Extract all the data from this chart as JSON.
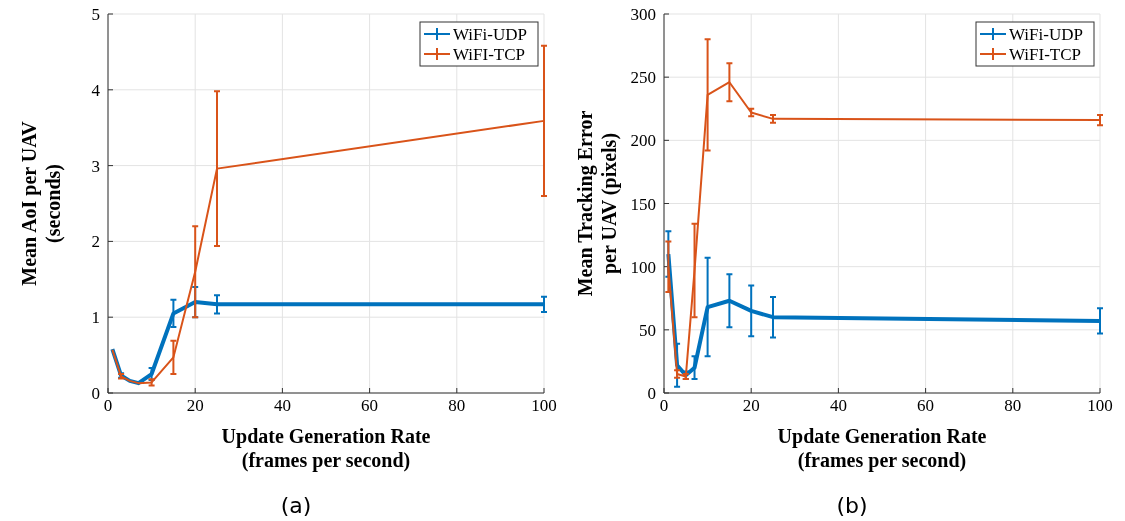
{
  "chart_data": [
    {
      "type": "line",
      "xlabel": "Update Generation Rate\n(frames per second)",
      "ylabel": "Mean AoI per UAV\n(seconds)",
      "annotations": [
        "(a)"
      ],
      "xlim": [
        0,
        100
      ],
      "ylim": [
        0,
        5
      ],
      "xticks": [
        0,
        20,
        40,
        60,
        80,
        100
      ],
      "yticks": [
        0,
        1,
        2,
        3,
        4,
        5
      ],
      "grid": true,
      "legend": "top right",
      "marker": "none",
      "x": [
        1,
        3,
        5,
        7,
        10,
        15,
        20,
        25,
        100
      ],
      "series": [
        {
          "name": "WiFi-UDP",
          "color": "#0072bd",
          "values": [
            0.58,
            0.23,
            0.16,
            0.13,
            0.25,
            1.05,
            1.2,
            1.17,
            1.17
          ],
          "errors": [
            null,
            0.03,
            null,
            null,
            0.08,
            0.18,
            0.2,
            0.12,
            0.1
          ]
        },
        {
          "name": "WiFI-TCP",
          "color": "#d95319",
          "values": [
            0.57,
            0.22,
            0.16,
            0.13,
            0.14,
            0.47,
            1.6,
            2.96,
            3.59
          ],
          "errors": [
            null,
            0.03,
            null,
            null,
            0.04,
            0.22,
            0.6,
            1.02,
            0.99
          ]
        }
      ]
    },
    {
      "type": "line",
      "xlabel": "Update Generation Rate\n(frames per second)",
      "ylabel": "Mean Tracking Error\nper UAV (pixels)",
      "annotations": [
        "(b)"
      ],
      "xlim": [
        0,
        100
      ],
      "ylim": [
        0,
        300
      ],
      "xticks": [
        0,
        20,
        40,
        60,
        80,
        100
      ],
      "yticks": [
        0,
        50,
        100,
        150,
        200,
        250,
        300
      ],
      "grid": true,
      "legend": "top right",
      "marker": "none",
      "x": [
        1,
        3,
        5,
        7,
        10,
        15,
        20,
        25,
        100
      ],
      "series": [
        {
          "name": "WiFi-UDP",
          "color": "#0072bd",
          "values": [
            110,
            22,
            14,
            20,
            68,
            73,
            65,
            60,
            57
          ],
          "errors": [
            18,
            17,
            3,
            9,
            39,
            21,
            20,
            16,
            10
          ]
        },
        {
          "name": "WiFI-TCP",
          "color": "#d95319",
          "values": [
            100,
            15,
            13,
            97,
            236,
            246,
            222,
            217,
            216
          ],
          "errors": [
            20,
            3,
            2,
            37,
            44,
            15,
            3,
            3,
            4
          ]
        }
      ]
    }
  ]
}
